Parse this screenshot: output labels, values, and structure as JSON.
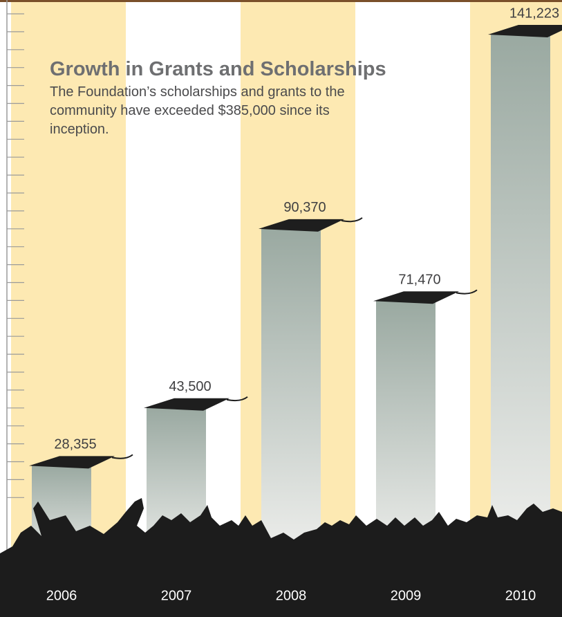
{
  "chart_data": {
    "type": "bar",
    "title": "Growth in Grants and Scholarships",
    "subtitle": "The Foundation’s scholarships and grants to the community have exceeded $385,000 since its inception.",
    "categories": [
      "2006",
      "2007",
      "2008",
      "2009",
      "2010"
    ],
    "values": [
      28355,
      43500,
      90370,
      71470,
      141223
    ],
    "value_labels": [
      "28,355",
      "43,500",
      "90,370",
      "71,470",
      "141,223"
    ],
    "color": "#9aa9a1"
  }
}
